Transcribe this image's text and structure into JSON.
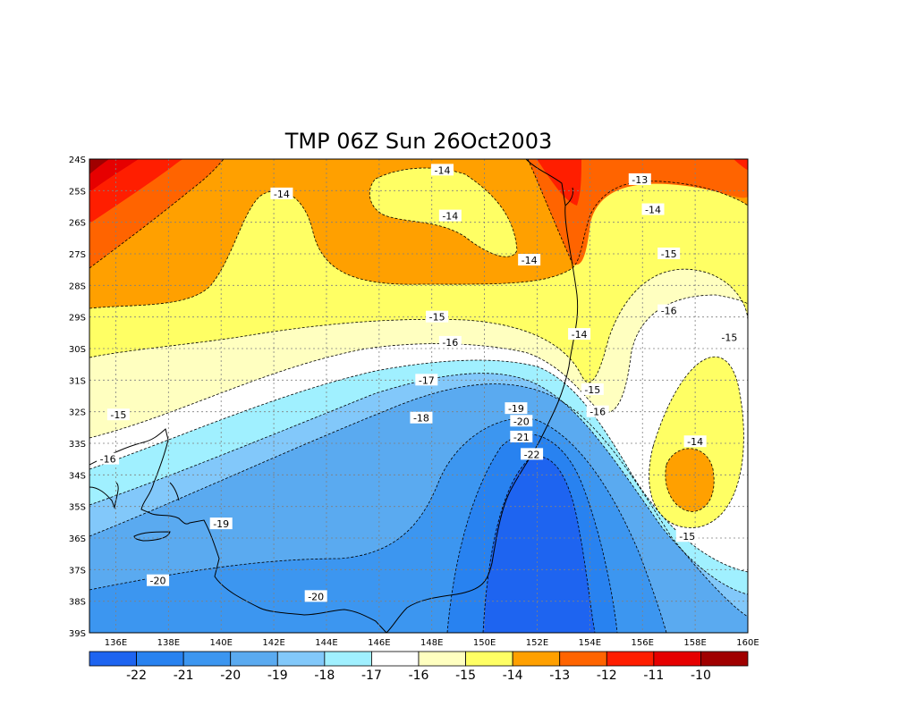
{
  "title": "TMP 06Z Sun 26Oct2003",
  "lat_labels": [
    "24S",
    "25S",
    "26S",
    "27S",
    "28S",
    "29S",
    "30S",
    "31S",
    "32S",
    "33S",
    "34S",
    "35S",
    "36S",
    "37S",
    "38S",
    "39S"
  ],
  "lon_labels": [
    "136E",
    "138E",
    "140E",
    "142E",
    "144E",
    "146E",
    "148E",
    "150E",
    "152E",
    "154E",
    "156E",
    "158E",
    "160E"
  ],
  "colorbar": {
    "colors": [
      "#1e64f0",
      "#2882f0",
      "#3c96f0",
      "#5aaaf0",
      "#82c8fa",
      "#a0f0ff",
      "#ffffff",
      "#ffffc0",
      "#ffff64",
      "#ffa000",
      "#ff6400",
      "#ff1e00",
      "#e60000",
      "#a00000"
    ],
    "labels": [
      "-22",
      "-21",
      "-20",
      "-19",
      "-18",
      "-17",
      "-16",
      "-15",
      "-14",
      "-13",
      "-12",
      "-11",
      "-10"
    ]
  },
  "contour_labels": [
    {
      "text": "-14",
      "lon": 148.4,
      "lat": 24.35
    },
    {
      "text": "-14",
      "lon": 142.3,
      "lat": 25.1
    },
    {
      "text": "-14",
      "lon": 148.7,
      "lat": 25.8
    },
    {
      "text": "-14",
      "lon": 151.7,
      "lat": 27.2
    },
    {
      "text": "-13",
      "lon": 155.9,
      "lat": 24.65
    },
    {
      "text": "-14",
      "lon": 156.4,
      "lat": 25.6
    },
    {
      "text": "-15",
      "lon": 157.0,
      "lat": 27.0
    },
    {
      "text": "-16",
      "lon": 157.0,
      "lat": 28.8
    },
    {
      "text": "-15",
      "lon": 148.2,
      "lat": 29.0
    },
    {
      "text": "-14",
      "lon": 153.6,
      "lat": 29.55
    },
    {
      "text": "-15",
      "lon": 159.3,
      "lat": 29.65
    },
    {
      "text": "-16",
      "lon": 148.7,
      "lat": 29.8
    },
    {
      "text": "-17",
      "lon": 147.8,
      "lat": 31.0
    },
    {
      "text": "-15",
      "lon": 154.1,
      "lat": 31.3
    },
    {
      "text": "-16",
      "lon": 154.3,
      "lat": 32.0
    },
    {
      "text": "-15",
      "lon": 136.1,
      "lat": 32.1
    },
    {
      "text": "-18",
      "lon": 147.6,
      "lat": 32.2
    },
    {
      "text": "-19",
      "lon": 151.2,
      "lat": 31.9
    },
    {
      "text": "-20",
      "lon": 151.4,
      "lat": 32.3
    },
    {
      "text": "-21",
      "lon": 151.4,
      "lat": 32.8
    },
    {
      "text": "-22",
      "lon": 151.8,
      "lat": 33.35
    },
    {
      "text": "-14",
      "lon": 158.0,
      "lat": 32.95
    },
    {
      "text": "-16",
      "lon": 135.7,
      "lat": 33.5
    },
    {
      "text": "-19",
      "lon": 140.0,
      "lat": 35.55
    },
    {
      "text": "-15",
      "lon": 157.7,
      "lat": 35.95
    },
    {
      "text": "-20",
      "lon": 137.6,
      "lat": 37.35
    },
    {
      "text": "-20",
      "lon": 143.6,
      "lat": 37.85
    }
  ]
}
